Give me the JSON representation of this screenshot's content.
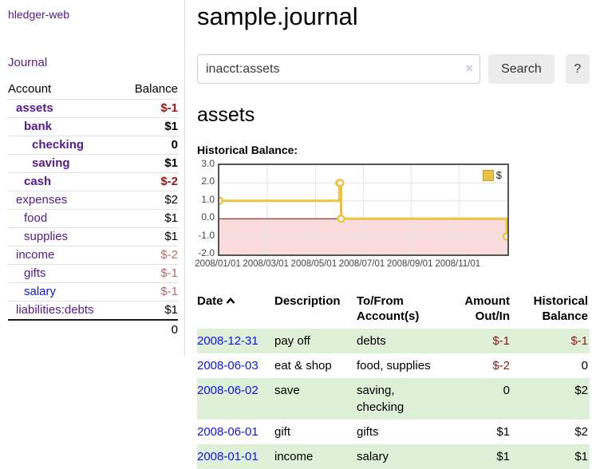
{
  "app": {
    "title": "hledger-web"
  },
  "sidebar": {
    "journal_link": "Journal",
    "table": {
      "account_header": "Account",
      "balance_header": "Balance",
      "rows": [
        {
          "name": "assets",
          "level": 1,
          "bold": true,
          "balance": "$-1",
          "neg": "strong"
        },
        {
          "name": "bank",
          "level": 2,
          "bold": true,
          "balance": "$1",
          "neg": null
        },
        {
          "name": "checking",
          "level": 3,
          "bold": true,
          "balance": "0",
          "neg": null
        },
        {
          "name": "saving",
          "level": 3,
          "bold": true,
          "balance": "$1",
          "neg": null
        },
        {
          "name": "cash",
          "level": 2,
          "bold": true,
          "balance": "$-2",
          "neg": "strong"
        },
        {
          "name": "expenses",
          "level": 1,
          "bold": false,
          "balance": "$2",
          "neg": null
        },
        {
          "name": "food",
          "level": 2,
          "bold": false,
          "balance": "$1",
          "neg": null
        },
        {
          "name": "supplies",
          "level": 2,
          "bold": false,
          "balance": "$1",
          "neg": null
        },
        {
          "name": "income",
          "level": 1,
          "bold": false,
          "balance": "$-2",
          "neg": "soft"
        },
        {
          "name": "gifts",
          "level": 2,
          "bold": false,
          "balance": "$-1",
          "neg": "soft"
        },
        {
          "name": "salary",
          "level": 2,
          "bold": false,
          "balance": "$-1",
          "neg": "soft",
          "unvisited": true
        },
        {
          "name": "liabilities:debts",
          "level": 1,
          "bold": false,
          "balance": "$1",
          "neg": null
        }
      ],
      "total": "0"
    }
  },
  "main": {
    "title": "sample.journal",
    "search": {
      "value": "inacct:assets",
      "clear_icon": "×",
      "button_label": "Search",
      "help_label": "?"
    },
    "heading": "assets",
    "chart_label": "Historical Balance:"
  },
  "chart_data": {
    "type": "line",
    "step": true,
    "title": "Historical Balance:",
    "ylim": [
      -2,
      3
    ],
    "yticks": [
      {
        "v": 3,
        "label": "3.0"
      },
      {
        "v": 2,
        "label": "2.0"
      },
      {
        "v": 1,
        "label": "1.0"
      },
      {
        "v": 0,
        "label": "0.0"
      },
      {
        "v": -1,
        "label": "-1.0"
      },
      {
        "v": -2,
        "label": "-2.0"
      }
    ],
    "x_months_range": [
      0,
      12
    ],
    "xticks": [
      {
        "m": 0,
        "label": "2008/01/01"
      },
      {
        "m": 2,
        "label": "2008/03/01"
      },
      {
        "m": 4,
        "label": "2008/05/01"
      },
      {
        "m": 6,
        "label": "2008/07/01"
      },
      {
        "m": 8,
        "label": "2008/09/01"
      },
      {
        "m": 10,
        "label": "2008/11/01"
      }
    ],
    "series": [
      {
        "name": "$",
        "color": "#edc240",
        "points": [
          {
            "date": "2008-01-01",
            "m": 0,
            "y": 1
          },
          {
            "date": "2008-06-01",
            "m": 5.0,
            "y": 2
          },
          {
            "date": "2008-06-02",
            "m": 5.03,
            "y": 2
          },
          {
            "date": "2008-06-03",
            "m": 5.07,
            "y": 0
          },
          {
            "date": "2008-12-31",
            "m": 11.97,
            "y": -1
          }
        ]
      }
    ],
    "legend": {
      "label": "$",
      "position": "top-right"
    },
    "grid": true,
    "grid_color": "#e5e5e5",
    "zero_line_color": "#8b0000",
    "negative_area_color": "#fbdcdc"
  },
  "register": {
    "headers": {
      "date": "Date",
      "description": "Description",
      "account": "To/From\nAccount(s)",
      "amount": "Amount\nOut/In",
      "balance": "Historical\nBalance"
    },
    "rows": [
      {
        "date": "2008-12-31",
        "description": "pay off",
        "accounts": "debts",
        "amount": "$-1",
        "amount_negative": true,
        "balance": "$-1",
        "balance_negative": true
      },
      {
        "date": "2008-06-03",
        "description": "eat & shop",
        "accounts": "food, supplies",
        "amount": "$-2",
        "amount_negative": true,
        "balance": "0",
        "balance_negative": false
      },
      {
        "date": "2008-06-02",
        "description": "save",
        "accounts": "saving,\nchecking",
        "amount": "0",
        "amount_negative": false,
        "balance": "$2",
        "balance_negative": false
      },
      {
        "date": "2008-06-01",
        "description": "gift",
        "accounts": "gifts",
        "amount": "$1",
        "amount_negative": false,
        "balance": "$2",
        "balance_negative": false
      },
      {
        "date": "2008-01-01",
        "description": "income",
        "accounts": "salary",
        "amount": "$1",
        "amount_negative": false,
        "balance": "$1",
        "balance_negative": false
      }
    ]
  },
  "colors": {
    "link_purple": "#551a8b",
    "link_blue": "#0d13e8",
    "negative_strong": "#a31515",
    "negative_soft": "#b36b6b",
    "register_negative": "#8b1a1a",
    "row_green": "#dff0d8",
    "chart_line_gold": "#edc240",
    "chart_negative_area": "#fbdcdc",
    "chart_zero_line": "#8b0000"
  }
}
